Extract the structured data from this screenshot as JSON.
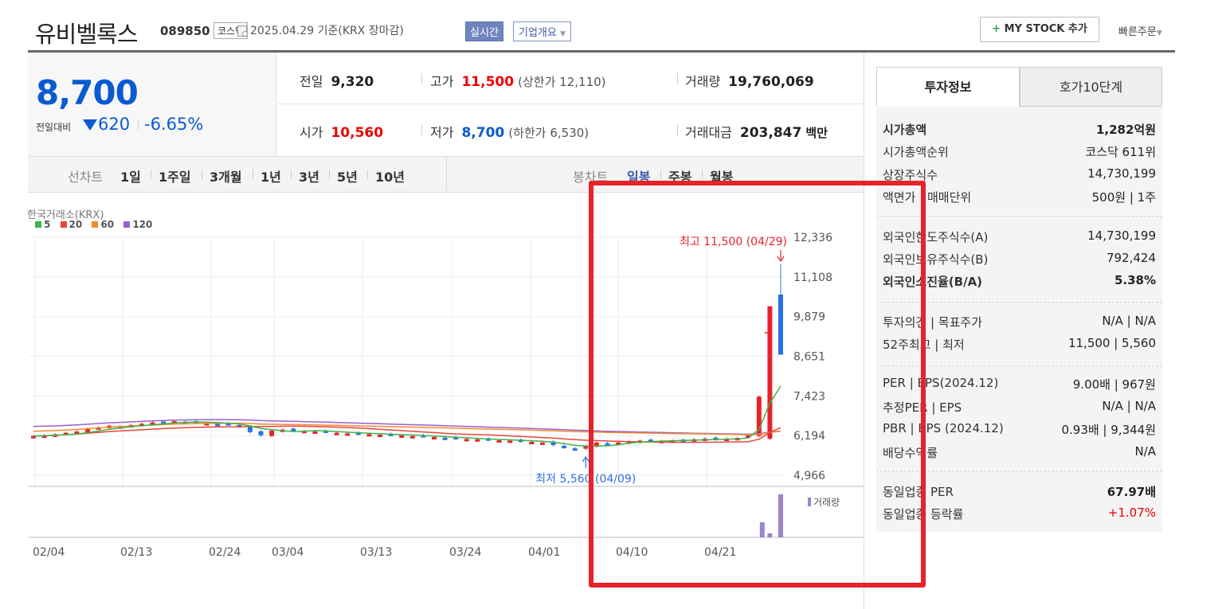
{
  "header": {
    "stock_name": "유비벨록스",
    "stock_code": "089850",
    "market": "코스닥",
    "date_text": "2025.04.29  기준(KRX 장마감)",
    "realtime": "실시간",
    "overview": "기업개요",
    "mystock": "MY STOCK 추가",
    "mystock_plus": "+",
    "quick_order": "빠른주문"
  },
  "summary": {
    "price": "8,700",
    "change_label": "전일대비",
    "change": "620",
    "change_pct": "-6.65%",
    "direction": "down",
    "prev_label": "전일",
    "prev": "9,320",
    "high_label": "고가",
    "high": "11,500",
    "upper_limit": "(상한가 12,110)",
    "volume_label": "거래량",
    "volume": "19,760,069",
    "open_label": "시가",
    "open": "10,560",
    "low_label": "저가",
    "low": "8,700",
    "lower_limit": "(하한가 6,530)",
    "value_label": "거래대금",
    "value": "203,847",
    "value_unit": "백만"
  },
  "chart_tabs": {
    "line_chart": "선차트",
    "periods": [
      "1일",
      "1주일",
      "3개월",
      "1년",
      "3년",
      "5년",
      "10년"
    ],
    "candle": "봉차트",
    "candle_periods": [
      "일봉",
      "주봉",
      "월봉"
    ],
    "active_candle": "일봉"
  },
  "chart_data": {
    "type": "candlestick",
    "source": "한국거래소(KRX)",
    "legend": [
      {
        "name": "5",
        "color": "#3bb34a"
      },
      {
        "name": "20",
        "color": "#e8443a"
      },
      {
        "name": "60",
        "color": "#f28a2e"
      },
      {
        "name": "120",
        "color": "#9a5fcf"
      }
    ],
    "y_ticks": [
      "12,336",
      "11,108",
      "9,879",
      "8,651",
      "7,423",
      "6,194",
      "4,966"
    ],
    "x_ticks": [
      "02/04",
      "02/13",
      "02/24",
      "03/04",
      "03/13",
      "03/24",
      "04/01",
      "04/10",
      "04/21"
    ],
    "annotations": {
      "high": "최고 11,500 (04/29)",
      "low": "최저 5,560 (04/09)"
    },
    "volume_label": "거래량",
    "closes": [
      6180,
      6200,
      6230,
      6280,
      6320,
      6400,
      6450,
      6500,
      6480,
      6520,
      6560,
      6600,
      6620,
      6640,
      6610,
      6600,
      6580,
      6550,
      6540,
      6500,
      6300,
      6200,
      6350,
      6380,
      6360,
      6340,
      6320,
      6300,
      6280,
      6260,
      6250,
      6240,
      6220,
      6210,
      6200,
      6180,
      6170,
      6150,
      6120,
      6100,
      6090,
      6080,
      6060,
      6050,
      6040,
      6020,
      6000,
      5980,
      5900,
      5820,
      5760,
      5880,
      5980,
      5950,
      5980,
      6020,
      6040,
      6050,
      6030,
      6040,
      6060,
      6080,
      6100,
      6080,
      6100,
      6120,
      6200,
      7400,
      10200,
      8700
    ],
    "colors": {
      "up": "#e8222a",
      "down": "#2a72e0"
    }
  },
  "invest_tabs": {
    "tab1": "투자정보",
    "tab2": "호가10단계"
  },
  "invest_info": {
    "s1": [
      {
        "k": "시가총액",
        "v": "1,282억원"
      },
      {
        "k": "시가총액순위",
        "v": "코스닥 611위"
      },
      {
        "k": "상장주식수",
        "v": "14,730,199"
      },
      {
        "k": "액면가 | 매매단위",
        "v": "500원 | 1주"
      }
    ],
    "s2": [
      {
        "k": "외국인한도주식수(A)",
        "v": "14,730,199"
      },
      {
        "k": "외국인보유주식수(B)",
        "v": "792,424"
      },
      {
        "k": "외국인소진율(B/A)",
        "v": "5.38%"
      }
    ],
    "s3": [
      {
        "k": "투자의견 | 목표주가",
        "v": "N/A | N/A"
      },
      {
        "k": "52주최고 | 최저",
        "v": "11,500 | 5,560"
      }
    ],
    "s4": [
      {
        "k": "PER | EPS(2024.12)",
        "v": "9.00배 | 967원"
      },
      {
        "k": "추정PER | EPS",
        "v": "N/A | N/A"
      },
      {
        "k": "PBR | BPS (2024.12)",
        "v": "0.93배 | 9,344원"
      },
      {
        "k": "배당수익률",
        "v": "N/A"
      }
    ],
    "s5": [
      {
        "k": "동일업종 PER",
        "v": "67.97배"
      },
      {
        "k": "동일업종 등락률",
        "v": "+1.07%"
      }
    ]
  }
}
